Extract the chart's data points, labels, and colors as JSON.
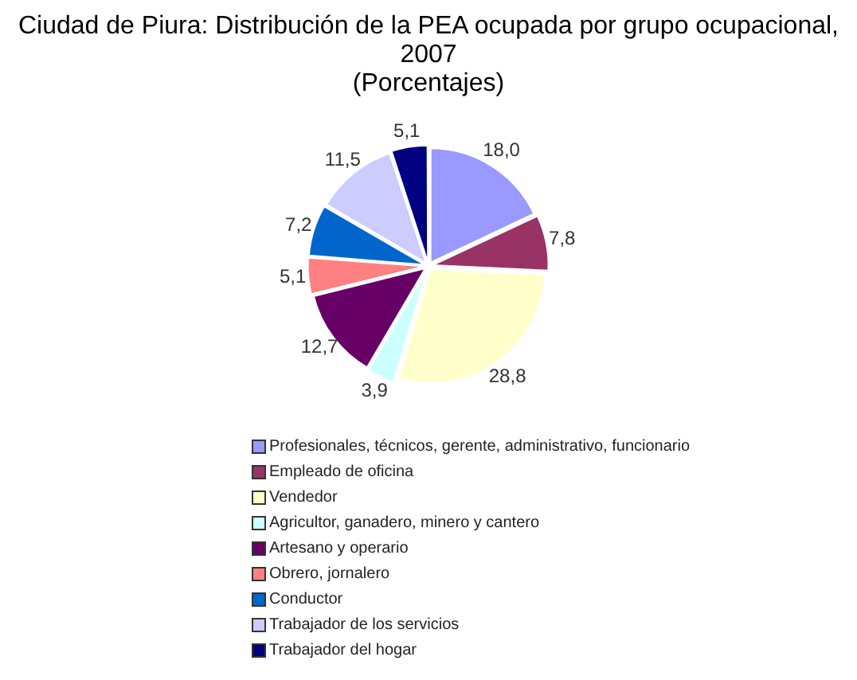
{
  "chart_data": {
    "type": "pie",
    "title": "Ciudad de Piura: Distribución de la PEA ocupada por grupo ocupacional, 2007",
    "subtitle": "(Porcentajes)",
    "categories": [
      "Profesionales, técnicos, gerente, administrativo, funcionario",
      "Empleado de oficina",
      "Vendedor",
      "Agricultor, ganadero, minero y cantero",
      "Artesano y operario",
      "Obrero, jornalero",
      "Conductor",
      "Trabajador de los servicios",
      "Trabajador del hogar"
    ],
    "values": [
      18.0,
      7.8,
      28.8,
      3.9,
      12.7,
      5.1,
      7.2,
      11.5,
      5.1
    ],
    "value_labels": [
      "18,0",
      "7,8",
      "28,8",
      "3,9",
      "12,7",
      "5,1",
      "7,2",
      "11,5",
      "5,1"
    ],
    "colors": [
      "#9999ff",
      "#993366",
      "#ffffcc",
      "#ccffff",
      "#660066",
      "#ff8080",
      "#0066cc",
      "#ccccff",
      "#000080"
    ],
    "legend": "bottom"
  }
}
